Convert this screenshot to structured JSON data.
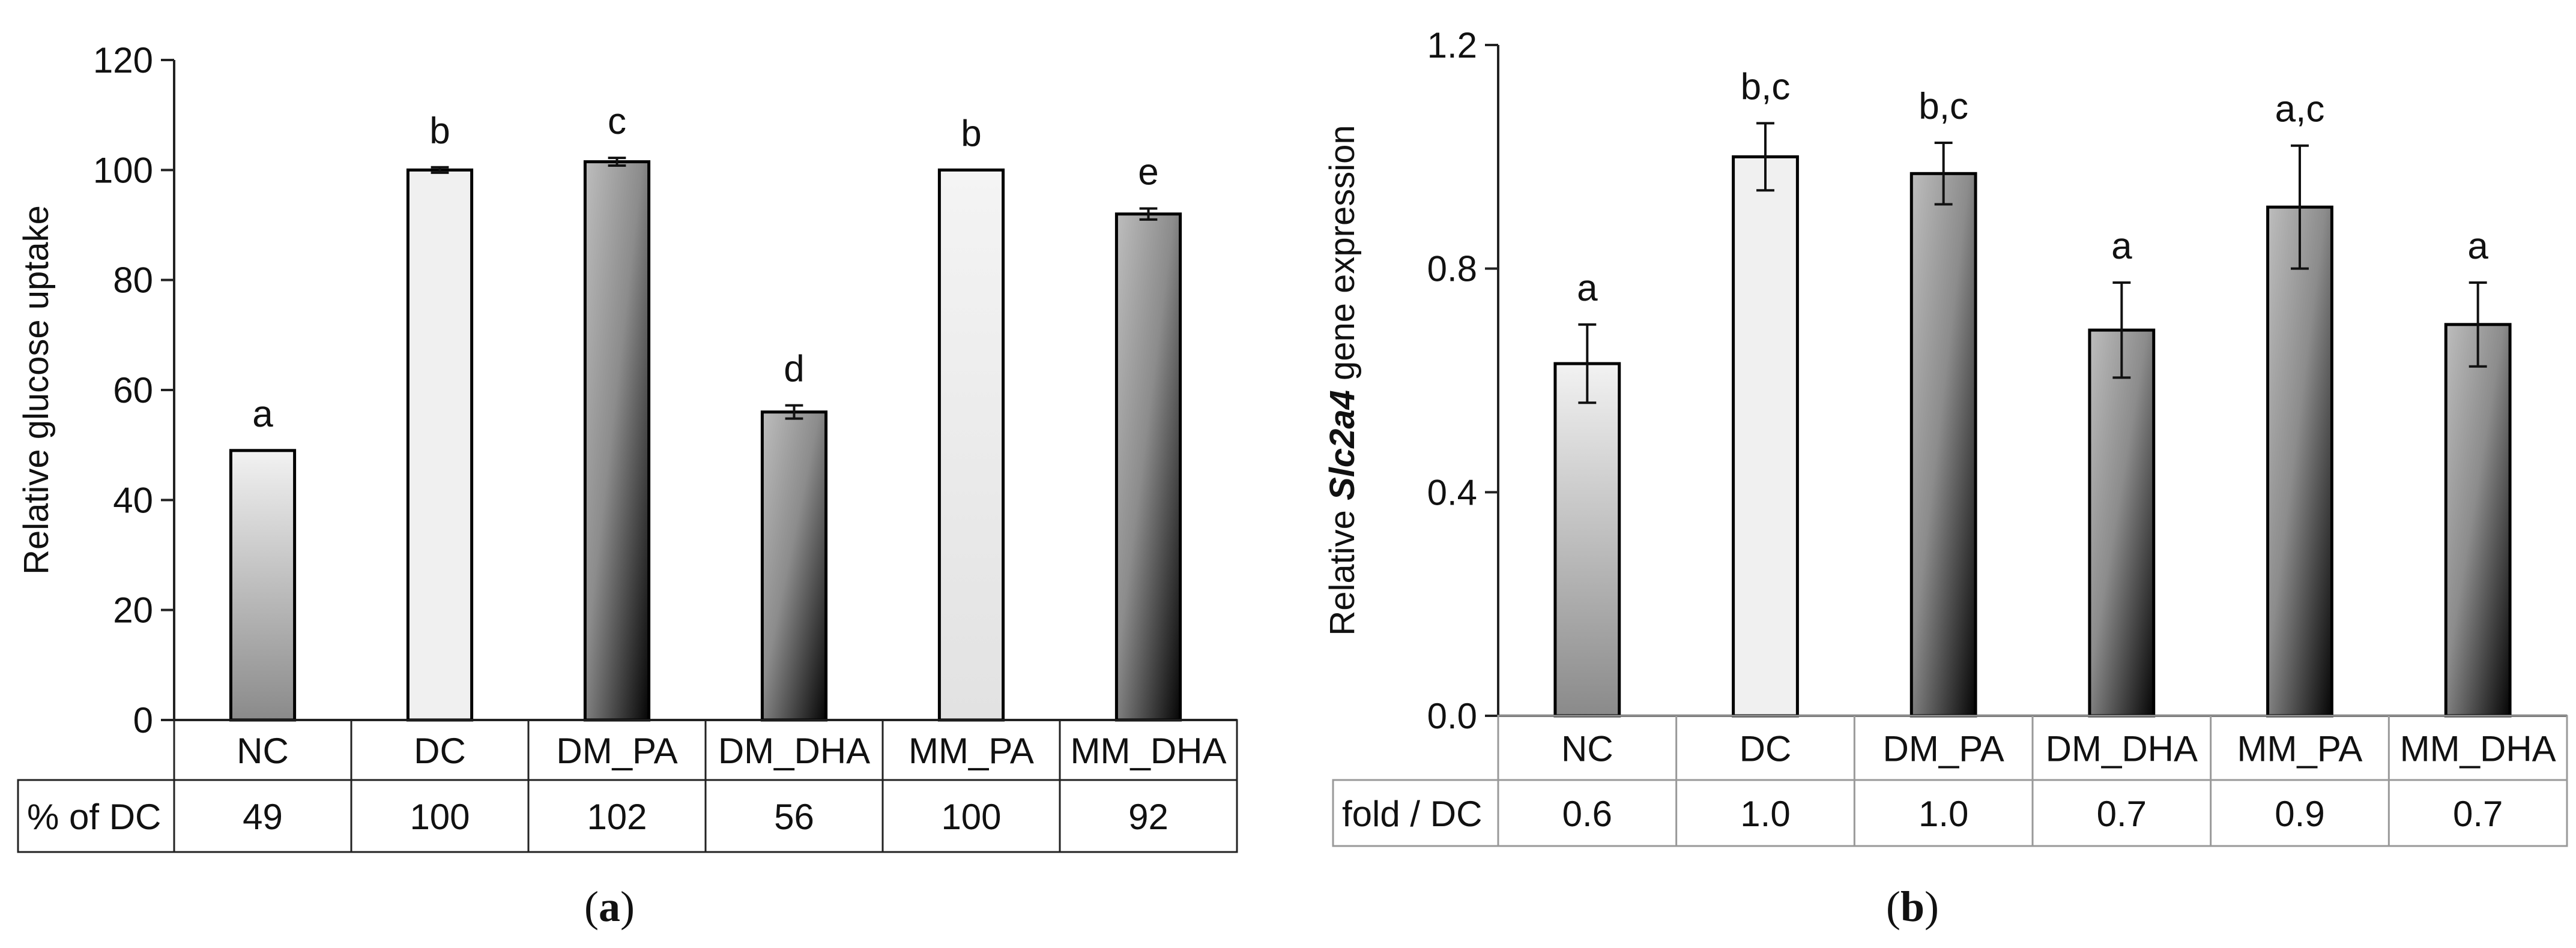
{
  "colors": {
    "axis": "#222222",
    "bar_outline": "#000000",
    "light_fill": "#f0f0f0"
  },
  "chart_data": [
    {
      "panel": "a",
      "type": "bar",
      "ylabel": "Relative glucose uptake",
      "ylim": [
        0,
        120
      ],
      "yticks": [
        "0",
        "20",
        "40",
        "60",
        "80",
        "100",
        "120"
      ],
      "categories": [
        "NC",
        "DC",
        "DM_PA",
        "DM_DHA",
        "MM_PA",
        "MM_DHA"
      ],
      "values": [
        49,
        100,
        101.5,
        56,
        100,
        92
      ],
      "errors": [
        0,
        0.5,
        0.7,
        1.2,
        0,
        1.0
      ],
      "fills": [
        "grad-up",
        "light",
        "grad-diag",
        "grad-diag",
        "grad-light",
        "grad-diag"
      ],
      "letters": [
        "a",
        "b",
        "c",
        "d",
        "b",
        "e"
      ],
      "row_label": "% of DC",
      "row_values": [
        "49",
        "100",
        "102",
        "56",
        "100",
        "92"
      ],
      "panel_label": "(a)"
    },
    {
      "panel": "b",
      "type": "bar",
      "ylabel_prefix": "Relative ",
      "ylabel_gene": "Slc2a4",
      "ylabel_suffix": " gene  expression",
      "ylim": [
        0,
        1.2
      ],
      "yticks": [
        "0.0",
        "0.4",
        "0.8",
        "1.2"
      ],
      "categories": [
        "NC",
        "DC",
        "DM_PA",
        "DM_DHA",
        "MM_PA",
        "MM_DHA"
      ],
      "values": [
        0.63,
        1.0,
        0.97,
        0.69,
        0.91,
        0.7
      ],
      "errors": [
        0.07,
        0.06,
        0.055,
        0.085,
        0.11,
        0.075
      ],
      "fills": [
        "grad-up",
        "light",
        "grad-diag",
        "grad-diag",
        "grad-diag",
        "grad-diag"
      ],
      "letters": [
        "a",
        "b,c",
        "b,c",
        "a",
        "a,c",
        "a"
      ],
      "row_label": "fold / DC",
      "row_values": [
        "0.6",
        "1.0",
        "1.0",
        "0.7",
        "0.9",
        "0.7"
      ],
      "panel_label": "(b)"
    }
  ]
}
